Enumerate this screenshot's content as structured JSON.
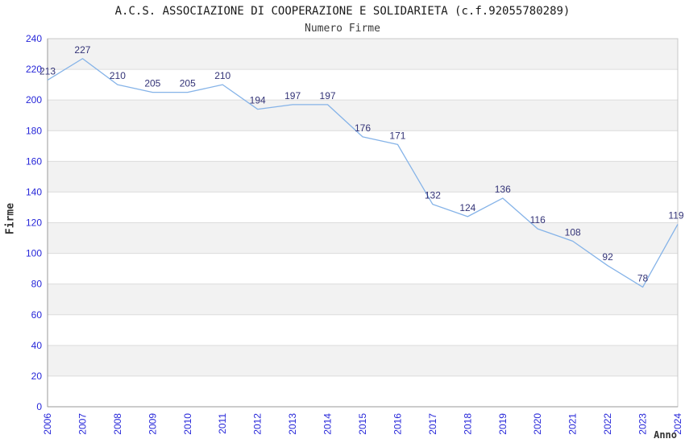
{
  "chart": {
    "title": "A.C.S. ASSOCIAZIONE DI COOPERAZIONE E SOLIDARIETA (c.f.92055780289)",
    "subtitle": "Numero Firme"
  },
  "chart_data": {
    "type": "line",
    "title": "A.C.S. ASSOCIAZIONE DI COOPERAZIONE E SOLIDARIETA (c.f.92055780289)",
    "subtitle": "Numero Firme",
    "xlabel": "Anno",
    "ylabel": "Firme",
    "categories": [
      "2006",
      "2007",
      "2008",
      "2009",
      "2010",
      "2011",
      "2012",
      "2013",
      "2014",
      "2015",
      "2016",
      "2017",
      "2018",
      "2019",
      "2020",
      "2021",
      "2022",
      "2023",
      "2024"
    ],
    "values": [
      213,
      227,
      210,
      205,
      205,
      210,
      194,
      197,
      197,
      176,
      171,
      132,
      124,
      136,
      116,
      108,
      92,
      78,
      119
    ],
    "ylim": [
      0,
      240
    ],
    "ytick_step": 20,
    "grid": "horizontal-bands",
    "legend": "none",
    "colors": {
      "line": "#85B3E8",
      "tick_label": "#2626D9",
      "data_label": "#333377",
      "band": "#F2F2F2",
      "band_alt": "#FFFFFF",
      "gridline": "#DCDCDC",
      "border": "#C8C8C8",
      "axis": "#999999",
      "title": "#1A1A1A",
      "subtitle": "#3C3C3C",
      "axis_title": "#333333"
    }
  }
}
